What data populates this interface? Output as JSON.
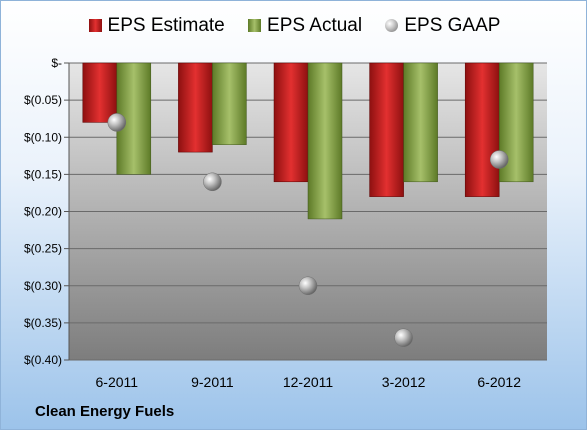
{
  "legend": {
    "estimate": "EPS Estimate",
    "actual": "EPS Actual",
    "gaap": "EPS GAAP"
  },
  "company": "Clean Energy Fuels",
  "colors": {
    "estimate": "#d42222",
    "actual": "#8fae4f",
    "gaap": "#b8b8b8"
  },
  "chart_data": {
    "type": "bar",
    "categories": [
      "6-2011",
      "9-2011",
      "12-2011",
      "3-2012",
      "6-2012"
    ],
    "series": [
      {
        "name": "EPS Estimate",
        "type": "bar",
        "values": [
          -0.08,
          -0.12,
          -0.16,
          -0.18,
          -0.18
        ]
      },
      {
        "name": "EPS Actual",
        "type": "bar",
        "values": [
          -0.15,
          -0.11,
          -0.21,
          -0.16,
          -0.16
        ]
      },
      {
        "name": "EPS GAAP",
        "type": "scatter",
        "values": [
          -0.08,
          -0.16,
          -0.3,
          -0.37,
          -0.13
        ]
      }
    ],
    "ylim": [
      -0.4,
      0
    ],
    "yticks": [
      0,
      -0.05,
      -0.1,
      -0.15,
      -0.2,
      -0.25,
      -0.3,
      -0.35,
      -0.4
    ],
    "ytick_labels": [
      "$-",
      "$(0.05)",
      "$(0.10)",
      "$(0.15)",
      "$(0.20)",
      "$(0.25)",
      "$(0.30)",
      "$(0.35)",
      "$(0.40)"
    ],
    "grid": true,
    "legend_position": "top"
  }
}
